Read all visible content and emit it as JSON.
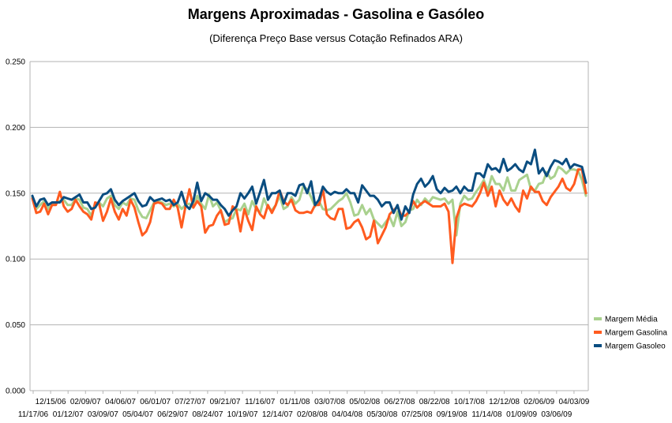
{
  "title": "Margens Aproximadas - Gasolina e Gasóleo",
  "subtitle": "(Diferença Preço Base versus Cotação Refinados ARA)",
  "chart_data": {
    "type": "line",
    "title": "Margens Aproximadas - Gasolina e Gasóleo",
    "subtitle": "(Diferença Preço Base versus Cotação Refinados ARA)",
    "ylim": [
      0,
      0.25
    ],
    "yticks": [
      "0.000",
      "0.050",
      "0.100",
      "0.150",
      "0.200",
      "0.250"
    ],
    "grid": true,
    "legend_position": "right",
    "x_tick_labels_row1": [
      "12/15/06",
      "02/09/07",
      "04/06/07",
      "06/01/07",
      "07/27/07",
      "09/21/07",
      "11/16/07",
      "01/11/08",
      "03/07/08",
      "05/02/08",
      "06/27/08",
      "08/22/08",
      "10/17/08",
      "12/12/08",
      "02/06/09",
      "04/03/09"
    ],
    "x_tick_labels_row2": [
      "11/17/06",
      "01/12/07",
      "03/09/07",
      "05/04/07",
      "06/29/07",
      "08/24/07",
      "10/19/07",
      "12/14/07",
      "02/08/08",
      "04/04/08",
      "05/30/08",
      "07/25/08",
      "09/19/08",
      "11/14/08",
      "01/09/09",
      "03/06/09"
    ],
    "x_start": "11/17/06",
    "x_end": "04/03/09",
    "series": [
      {
        "name": "Margem Média",
        "color": "#a9d18e",
        "values": [
          0.147,
          0.138,
          0.141,
          0.144,
          0.138,
          0.142,
          0.142,
          0.144,
          0.145,
          0.141,
          0.141,
          0.146,
          0.145,
          0.139,
          0.138,
          0.133,
          0.141,
          0.143,
          0.14,
          0.146,
          0.148,
          0.141,
          0.138,
          0.143,
          0.141,
          0.146,
          0.145,
          0.137,
          0.132,
          0.131,
          0.137,
          0.143,
          0.144,
          0.143,
          0.141,
          0.142,
          0.14,
          0.142,
          0.138,
          0.141,
          0.142,
          0.139,
          0.148,
          0.142,
          0.138,
          0.149,
          0.14,
          0.143,
          0.137,
          0.128,
          0.13,
          0.131,
          0.138,
          0.137,
          0.142,
          0.134,
          0.144,
          0.138,
          0.135,
          0.146,
          0.139,
          0.137,
          0.141,
          0.148,
          0.138,
          0.14,
          0.147,
          0.142,
          0.145,
          0.155,
          0.153,
          0.147,
          0.14,
          0.144,
          0.138,
          0.137,
          0.138,
          0.141,
          0.144,
          0.146,
          0.15,
          0.143,
          0.133,
          0.134,
          0.141,
          0.134,
          0.138,
          0.13,
          0.127,
          0.124,
          0.128,
          0.132,
          0.125,
          0.136,
          0.125,
          0.128,
          0.137,
          0.138,
          0.145,
          0.141,
          0.146,
          0.143,
          0.147,
          0.146,
          0.145,
          0.146,
          0.142,
          0.145,
          0.118,
          0.142,
          0.148,
          0.145,
          0.146,
          0.151,
          0.155,
          0.16,
          0.152,
          0.163,
          0.157,
          0.157,
          0.152,
          0.162,
          0.152,
          0.152,
          0.16,
          0.162,
          0.164,
          0.153,
          0.152,
          0.157,
          0.158,
          0.166,
          0.161,
          0.163,
          0.17,
          0.168,
          0.165,
          0.168,
          0.168,
          0.167,
          0.16,
          0.148
        ]
      },
      {
        "name": "Margem Gasolina",
        "color": "#ff5b1f",
        "values": [
          0.146,
          0.135,
          0.136,
          0.142,
          0.134,
          0.141,
          0.141,
          0.151,
          0.14,
          0.136,
          0.138,
          0.145,
          0.14,
          0.136,
          0.134,
          0.13,
          0.143,
          0.142,
          0.129,
          0.136,
          0.146,
          0.136,
          0.13,
          0.138,
          0.133,
          0.145,
          0.139,
          0.128,
          0.118,
          0.121,
          0.128,
          0.142,
          0.143,
          0.142,
          0.138,
          0.138,
          0.145,
          0.139,
          0.124,
          0.14,
          0.153,
          0.139,
          0.144,
          0.14,
          0.12,
          0.125,
          0.126,
          0.133,
          0.137,
          0.126,
          0.127,
          0.14,
          0.137,
          0.121,
          0.138,
          0.129,
          0.122,
          0.14,
          0.134,
          0.131,
          0.141,
          0.135,
          0.141,
          0.152,
          0.144,
          0.141,
          0.145,
          0.137,
          0.135,
          0.135,
          0.136,
          0.135,
          0.141,
          0.141,
          0.153,
          0.134,
          0.131,
          0.13,
          0.138,
          0.138,
          0.123,
          0.124,
          0.128,
          0.13,
          0.124,
          0.115,
          0.117,
          0.129,
          0.112,
          0.118,
          0.124,
          0.134,
          0.137,
          0.14,
          0.133,
          0.133,
          0.136,
          0.144,
          0.139,
          0.142,
          0.144,
          0.142,
          0.14,
          0.14,
          0.14,
          0.142,
          0.136,
          0.097,
          0.131,
          0.14,
          0.142,
          0.141,
          0.14,
          0.144,
          0.15,
          0.158,
          0.148,
          0.155,
          0.14,
          0.152,
          0.145,
          0.141,
          0.146,
          0.14,
          0.136,
          0.152,
          0.146,
          0.155,
          0.151,
          0.151,
          0.144,
          0.141,
          0.147,
          0.151,
          0.155,
          0.161,
          0.154,
          0.152,
          0.157,
          0.168,
          0.168,
          0.15
        ]
      },
      {
        "name": "Margem Gasoleo",
        "color": "#0a4d80",
        "values": [
          0.148,
          0.14,
          0.145,
          0.146,
          0.141,
          0.143,
          0.143,
          0.143,
          0.147,
          0.146,
          0.145,
          0.147,
          0.149,
          0.143,
          0.143,
          0.138,
          0.139,
          0.144,
          0.149,
          0.15,
          0.153,
          0.145,
          0.141,
          0.144,
          0.146,
          0.148,
          0.15,
          0.144,
          0.14,
          0.141,
          0.147,
          0.144,
          0.145,
          0.146,
          0.144,
          0.145,
          0.141,
          0.143,
          0.151,
          0.141,
          0.138,
          0.144,
          0.158,
          0.144,
          0.15,
          0.148,
          0.145,
          0.145,
          0.141,
          0.138,
          0.133,
          0.137,
          0.14,
          0.15,
          0.146,
          0.15,
          0.155,
          0.142,
          0.151,
          0.16,
          0.145,
          0.15,
          0.15,
          0.152,
          0.142,
          0.15,
          0.15,
          0.148,
          0.156,
          0.157,
          0.15,
          0.159,
          0.141,
          0.145,
          0.155,
          0.151,
          0.149,
          0.151,
          0.15,
          0.15,
          0.153,
          0.15,
          0.15,
          0.143,
          0.156,
          0.152,
          0.148,
          0.148,
          0.145,
          0.14,
          0.143,
          0.143,
          0.135,
          0.141,
          0.13,
          0.14,
          0.135,
          0.149,
          0.157,
          0.161,
          0.155,
          0.158,
          0.163,
          0.153,
          0.15,
          0.154,
          0.151,
          0.152,
          0.155,
          0.15,
          0.155,
          0.152,
          0.152,
          0.165,
          0.165,
          0.162,
          0.172,
          0.168,
          0.169,
          0.166,
          0.176,
          0.167,
          0.169,
          0.172,
          0.168,
          0.166,
          0.174,
          0.172,
          0.183,
          0.165,
          0.169,
          0.163,
          0.17,
          0.175,
          0.174,
          0.172,
          0.176,
          0.169,
          0.172,
          0.171,
          0.17,
          0.158
        ]
      }
    ]
  }
}
